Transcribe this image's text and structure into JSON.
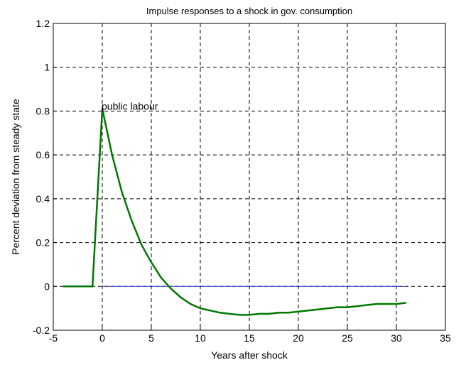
{
  "chart_data": {
    "type": "line",
    "title": "Impulse responses to a shock in gov. consumption",
    "xlabel": "Years after shock",
    "ylabel": "Percent deviation from steady state",
    "xlim": [
      -5,
      35
    ],
    "ylim": [
      -0.2,
      1.2
    ],
    "x_ticks": [
      -5,
      0,
      5,
      10,
      15,
      20,
      25,
      30,
      35
    ],
    "x_tick_labels": [
      "-5",
      "0",
      "5",
      "10",
      "15",
      "20",
      "25",
      "30",
      "35"
    ],
    "y_ticks": [
      -0.2,
      0,
      0.2,
      0.4,
      0.6,
      0.8,
      1,
      1.2
    ],
    "y_tick_labels": [
      "-0.2",
      "0",
      "0.2",
      "0.4",
      "0.6",
      "0.8",
      "1",
      "1.2"
    ],
    "grid": true,
    "annotation": {
      "text": "public labour",
      "x": 0,
      "y": 0.8
    },
    "series": [
      {
        "color": "#007700",
        "x": [
          -4,
          -3,
          -2,
          -1,
          0,
          1,
          2,
          3,
          4,
          5,
          6,
          7,
          8,
          9,
          10,
          11,
          12,
          13,
          14,
          15,
          16,
          17,
          18,
          19,
          20,
          21,
          22,
          23,
          24,
          25,
          26,
          27,
          28,
          29,
          30,
          31
        ],
        "values": [
          0,
          0,
          0,
          0,
          0.81,
          0.6,
          0.43,
          0.3,
          0.19,
          0.11,
          0.04,
          -0.01,
          -0.05,
          -0.08,
          -0.1,
          -0.11,
          -0.12,
          -0.125,
          -0.13,
          -0.13,
          -0.125,
          -0.125,
          -0.12,
          -0.12,
          -0.115,
          -0.11,
          -0.105,
          -0.1,
          -0.095,
          -0.095,
          -0.09,
          -0.085,
          -0.08,
          -0.08,
          -0.08,
          -0.075
        ]
      },
      {
        "color": "#3333cc",
        "x": [
          0,
          31
        ],
        "values": [
          0,
          0
        ]
      }
    ]
  }
}
